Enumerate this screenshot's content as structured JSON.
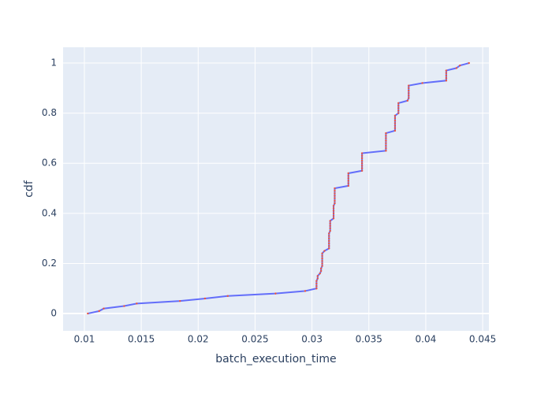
{
  "chart_data": {
    "type": "line",
    "x_label": "batch_execution_time",
    "y_label": "cdf",
    "series": [
      {
        "color": "#636efa",
        "marker_color": "#ef553b",
        "x": [
          0.0103,
          0.0113,
          0.0117,
          0.0135,
          0.0146,
          0.0184,
          0.0206,
          0.0226,
          0.0268,
          0.0294,
          0.0304,
          0.0304,
          0.0304,
          0.0304,
          0.0305,
          0.0305,
          0.0307,
          0.0308,
          0.0308,
          0.0309,
          0.0309,
          0.0309,
          0.0309,
          0.0309,
          0.0309,
          0.0311,
          0.0315,
          0.0315,
          0.0315,
          0.0315,
          0.0315,
          0.0315,
          0.0315,
          0.0316,
          0.0316,
          0.0316,
          0.0316,
          0.0316,
          0.0319,
          0.0319,
          0.0319,
          0.0319,
          0.0319,
          0.0319,
          0.032,
          0.032,
          0.032,
          0.032,
          0.032,
          0.032,
          0.032,
          0.0332,
          0.0332,
          0.0332,
          0.0332,
          0.0332,
          0.0332,
          0.0344,
          0.0344,
          0.0344,
          0.0344,
          0.0344,
          0.0344,
          0.0344,
          0.0344,
          0.0365,
          0.0365,
          0.0365,
          0.0365,
          0.0365,
          0.0365,
          0.0365,
          0.0365,
          0.0373,
          0.0373,
          0.0373,
          0.0373,
          0.0373,
          0.0373,
          0.0373,
          0.0376,
          0.0376,
          0.0376,
          0.0376,
          0.0376,
          0.0384,
          0.0385,
          0.0385,
          0.0385,
          0.0385,
          0.0385,
          0.0385,
          0.0397,
          0.0418,
          0.0418,
          0.0418,
          0.0418,
          0.0418,
          0.0427,
          0.043,
          0.0438
        ],
        "values": [
          0,
          0.01,
          0.02,
          0.03,
          0.04,
          0.05,
          0.06,
          0.07,
          0.08,
          0.09,
          0.1,
          0.11,
          0.12,
          0.13,
          0.14,
          0.15,
          0.16,
          0.17,
          0.18,
          0.19,
          0.2,
          0.21,
          0.22,
          0.23,
          0.24,
          0.25,
          0.26,
          0.27,
          0.28,
          0.29,
          0.3,
          0.31,
          0.32,
          0.33,
          0.34,
          0.35,
          0.36,
          0.37,
          0.38,
          0.39,
          0.4,
          0.41,
          0.42,
          0.43,
          0.44,
          0.45,
          0.46,
          0.47,
          0.48,
          0.49,
          0.5,
          0.51,
          0.52,
          0.53,
          0.54,
          0.55,
          0.56,
          0.57,
          0.58,
          0.59,
          0.6,
          0.61,
          0.62,
          0.63,
          0.64,
          0.65,
          0.66,
          0.67,
          0.68,
          0.69,
          0.7,
          0.71,
          0.72,
          0.73,
          0.74,
          0.75,
          0.76,
          0.77,
          0.78,
          0.79,
          0.8,
          0.81,
          0.82,
          0.83,
          0.84,
          0.85,
          0.86,
          0.87,
          0.88,
          0.89,
          0.9,
          0.91,
          0.92,
          0.93,
          0.94,
          0.95,
          0.96,
          0.97,
          0.98,
          0.99,
          1
        ]
      }
    ],
    "xlim": [
      0.00813,
      0.04555
    ],
    "xticks": [
      0.01,
      0.015,
      0.02,
      0.025,
      0.03,
      0.035,
      0.04,
      0.045
    ],
    "ylim": [
      -0.069,
      1.063
    ],
    "yticks": [
      0,
      0.2,
      0.4,
      0.6,
      0.8,
      1
    ],
    "grid": true,
    "plot_bgcolor": "#e5ecf6"
  }
}
